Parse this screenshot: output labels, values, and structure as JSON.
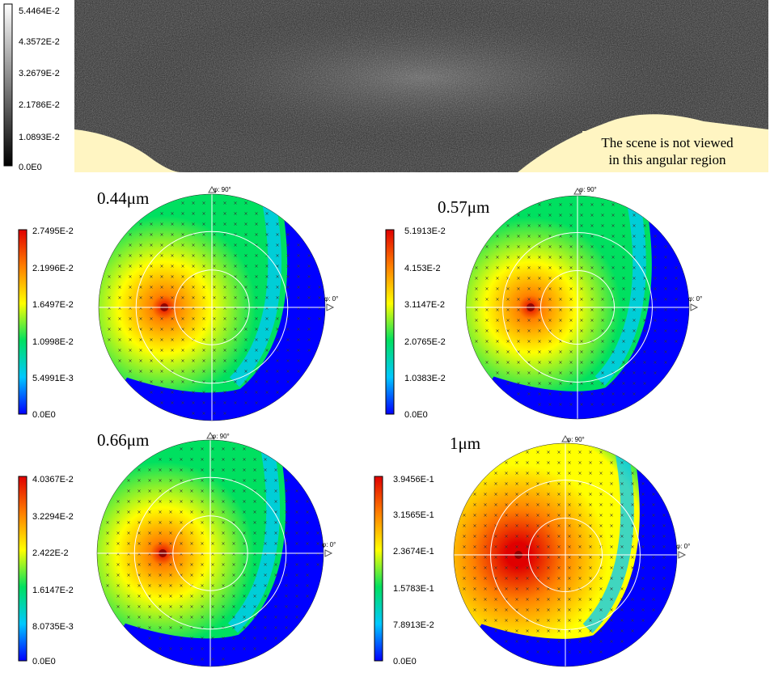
{
  "top_panel": {
    "colorbar": {
      "ticks": [
        "5.4464E-2",
        "4.3572E-2",
        "3.2679E-2",
        "2.1786E-2",
        "1.0893E-2",
        "0.0E0"
      ],
      "colors": [
        "#ffffff",
        "#000000"
      ]
    },
    "note": [
      "The scene is not viewed",
      "in this angular region"
    ],
    "colors": {
      "background": "#2a2a2a",
      "unviewed": "#fff5c2"
    }
  },
  "chart_data": [
    {
      "type": "heatmap",
      "projection": "polar",
      "title": "0.44μm",
      "phi_labels": [
        "φ: 90°",
        "φ: 0°"
      ],
      "colorbar_ticks": [
        "2.7495E-2",
        "2.1996E-2",
        "1.6497E-2",
        "1.0998E-2",
        "5.4991E-3",
        "0.0E0"
      ],
      "value_range": [
        0.0,
        0.027495
      ],
      "hotspot_value": 0.027,
      "field_level": 0.45
    },
    {
      "type": "heatmap",
      "projection": "polar",
      "title": "0.57μm",
      "phi_labels": [
        "φ: 90°",
        "φ: 0°"
      ],
      "colorbar_ticks": [
        "5.1913E-2",
        "4.153E-2",
        "3.1147E-2",
        "2.0765E-2",
        "1.0383E-2",
        "0.0E0"
      ],
      "value_range": [
        0.0,
        0.051913
      ],
      "hotspot_value": 0.051,
      "field_level": 0.45
    },
    {
      "type": "heatmap",
      "projection": "polar",
      "title": "0.66μm",
      "phi_labels": [
        "φ: 90°",
        "φ: 0°"
      ],
      "colorbar_ticks": [
        "4.0367E-2",
        "3.2294E-2",
        "2.422E-2",
        "1.6147E-2",
        "8.0735E-3",
        "0.0E0"
      ],
      "value_range": [
        0.0,
        0.040367
      ],
      "hotspot_value": 0.04,
      "field_level": 0.4
    },
    {
      "type": "heatmap",
      "projection": "polar",
      "title": "1μm",
      "phi_labels": [
        "φ: 90°",
        "φ: 0°"
      ],
      "colorbar_ticks": [
        "3.9456E-1",
        "3.1565E-1",
        "2.3674E-1",
        "1.5783E-1",
        "7.8913E-2",
        "0.0E0"
      ],
      "value_range": [
        0.0,
        0.39456
      ],
      "hotspot_value": 0.35,
      "field_level": 0.65
    }
  ],
  "colormap": [
    "#0000ff",
    "#00c8ff",
    "#00e060",
    "#ffff00",
    "#ff8000",
    "#e00000"
  ]
}
